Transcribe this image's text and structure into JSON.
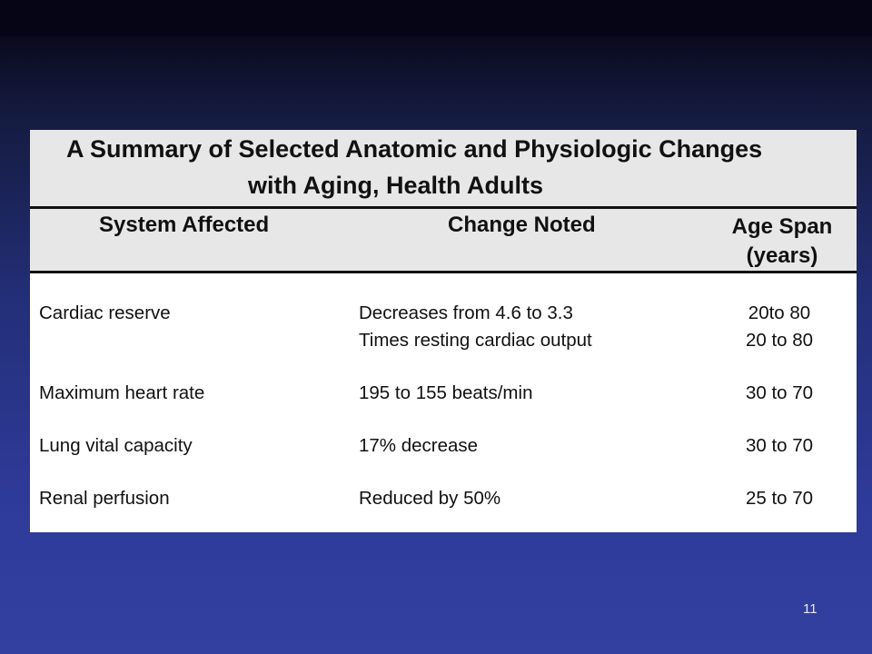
{
  "slide": {
    "title_line1": "A Summary of Selected Anatomic and Physiologic Changes",
    "title_line2": "with Aging, Health Adults",
    "page_number": "11"
  },
  "table": {
    "headers": {
      "system": "System Affected",
      "change": "Change Noted",
      "age_line1": "Age Span",
      "age_line2": "(years)"
    },
    "rows": [
      {
        "system": "Cardiac reserve",
        "change": "Decreases from 4.6 to 3.3",
        "age": "20to 80"
      },
      {
        "system": "",
        "change": "Times resting cardiac output",
        "age": "20 to 80"
      },
      {
        "system": "Maximum heart rate",
        "change": "195 to 155 beats/min",
        "age": "30 to 70"
      },
      {
        "system": "Lung vital capacity",
        "change": "17% decrease",
        "age": "30 to 70"
      },
      {
        "system": "Renal perfusion",
        "change": "Reduced by 50%",
        "age": "25 to 70"
      }
    ]
  }
}
